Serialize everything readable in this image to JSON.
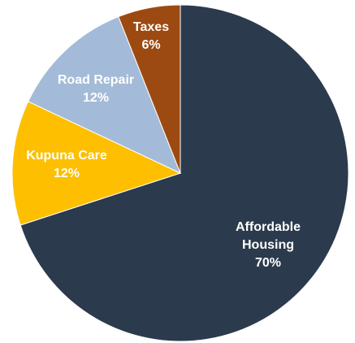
{
  "chart_data": {
    "type": "pie",
    "categories": [
      "Affordable Housing",
      "Kupuna Care",
      "Road Repair",
      "Taxes"
    ],
    "values": [
      70,
      12,
      12,
      6
    ],
    "value_labels": [
      "70%",
      "12%",
      "12%",
      "6%"
    ],
    "colors": [
      "#2b3b4d",
      "#fdbf00",
      "#a3bbd8",
      "#9c4a12"
    ]
  }
}
